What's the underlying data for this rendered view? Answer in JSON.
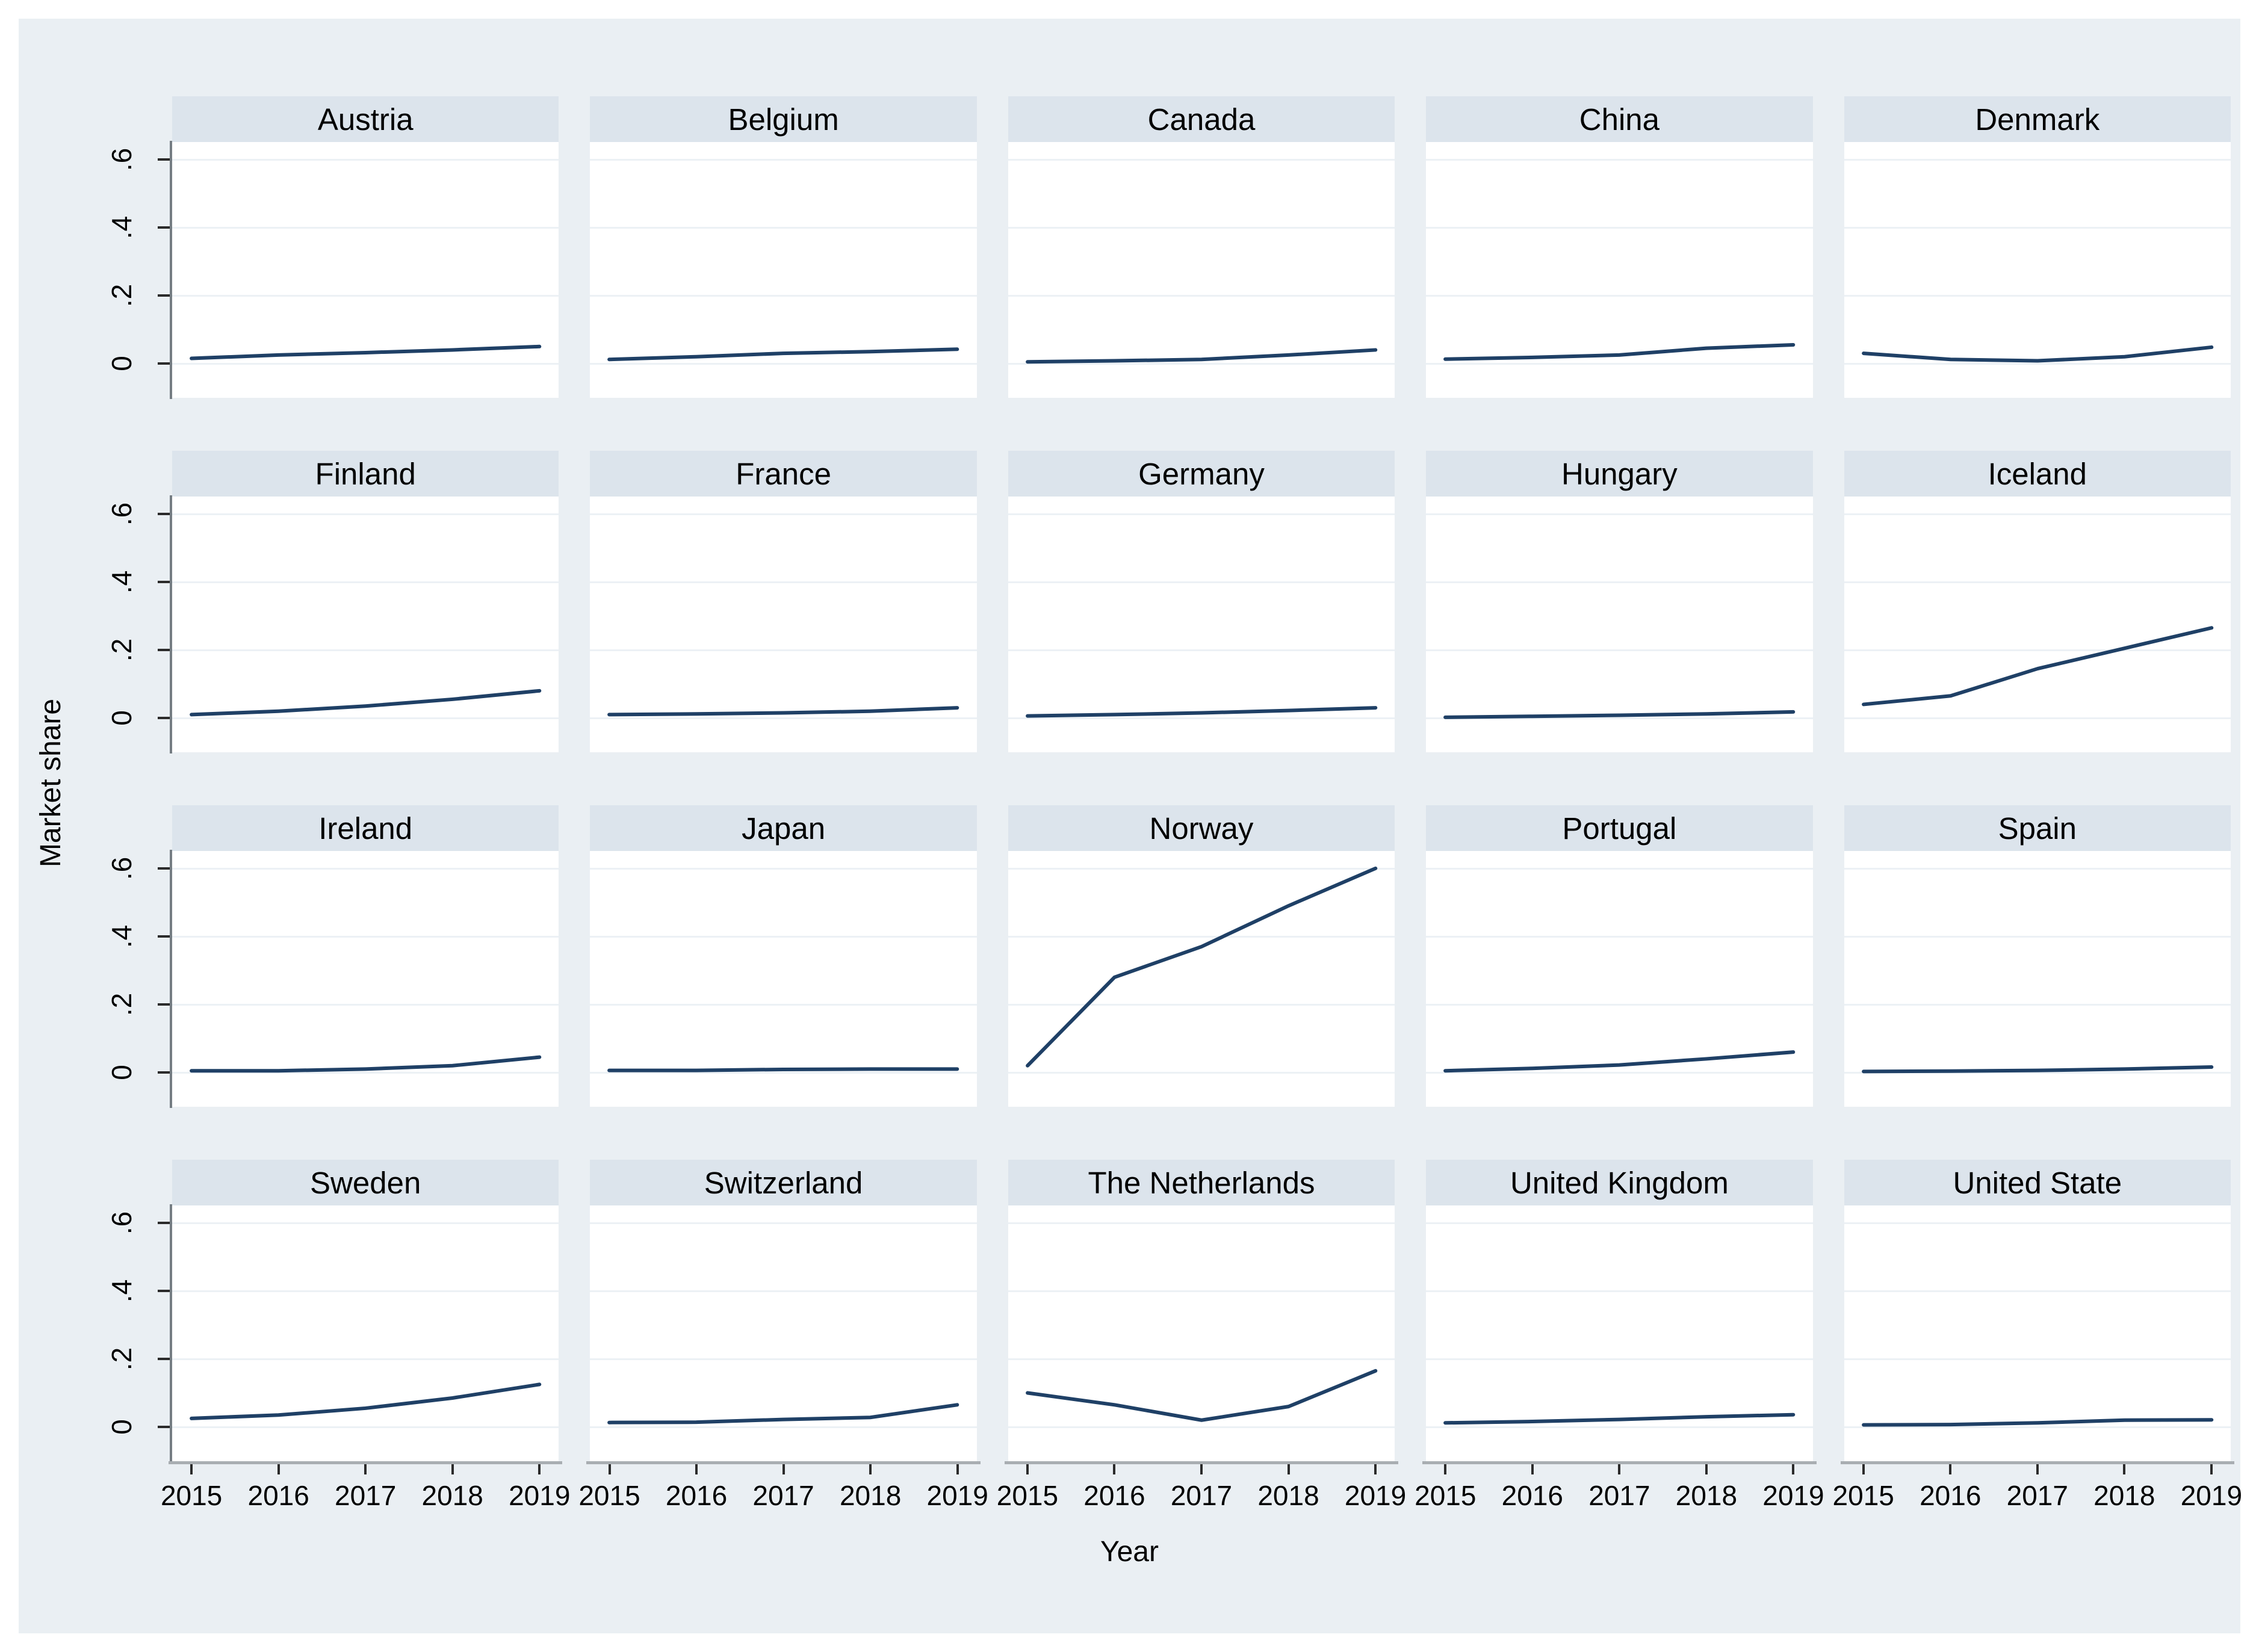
{
  "figure": {
    "y_axis_title": "Market share",
    "x_axis_title": "Year"
  },
  "colors": {
    "line": "#1f4066",
    "panel_header_bg": "#dce4ec",
    "canvas_bg": "#eaeff3",
    "plot_bg": "#ffffff",
    "gridline": "#ecf1f5",
    "axis_spine": "#757d83",
    "axis_bar": "#a9aeb2",
    "tick": "#2b2b2b"
  },
  "chart_data": {
    "type": "line",
    "layout": "small-multiples 4 rows x 5 cols",
    "title": "",
    "xlabel": "Year",
    "ylabel": "Market share",
    "x": [
      2015,
      2016,
      2017,
      2018,
      2019
    ],
    "x_tick_labels": [
      "2015",
      "2016",
      "2017",
      "2018",
      "2019"
    ],
    "ylim": [
      -0.045,
      0.65
    ],
    "yticks": [
      {
        "v": 0.0,
        "label": "0"
      },
      {
        "v": 0.2,
        "label": ".2"
      },
      {
        "v": 0.4,
        "label": ".4"
      },
      {
        "v": 0.6,
        "label": ".6"
      }
    ],
    "grid": "horizontal gridlines at y ticks",
    "legend": "none",
    "series": [
      {
        "name": "Austria",
        "values": [
          0.015,
          0.025,
          0.032,
          0.04,
          0.05
        ]
      },
      {
        "name": "Belgium",
        "values": [
          0.012,
          0.02,
          0.03,
          0.035,
          0.042
        ]
      },
      {
        "name": "Canada",
        "values": [
          0.005,
          0.008,
          0.012,
          0.025,
          0.04
        ]
      },
      {
        "name": "China",
        "values": [
          0.013,
          0.018,
          0.025,
          0.045,
          0.055
        ]
      },
      {
        "name": "Denmark",
        "values": [
          0.03,
          0.012,
          0.008,
          0.02,
          0.048
        ]
      },
      {
        "name": "Finland",
        "values": [
          0.01,
          0.02,
          0.035,
          0.055,
          0.08
        ]
      },
      {
        "name": "France",
        "values": [
          0.01,
          0.012,
          0.015,
          0.02,
          0.03
        ]
      },
      {
        "name": "Germany",
        "values": [
          0.006,
          0.01,
          0.015,
          0.022,
          0.03
        ]
      },
      {
        "name": "Hungary",
        "values": [
          0.002,
          0.005,
          0.008,
          0.012,
          0.018
        ]
      },
      {
        "name": "Iceland",
        "values": [
          0.04,
          0.065,
          0.145,
          0.205,
          0.265
        ]
      },
      {
        "name": "Ireland",
        "values": [
          0.005,
          0.005,
          0.01,
          0.02,
          0.045
        ]
      },
      {
        "name": "Japan",
        "values": [
          0.006,
          0.006,
          0.009,
          0.01,
          0.01
        ]
      },
      {
        "name": "Norway",
        "values": [
          0.02,
          0.28,
          0.37,
          0.49,
          0.6
        ]
      },
      {
        "name": "Portugal",
        "values": [
          0.005,
          0.012,
          0.022,
          0.04,
          0.06
        ]
      },
      {
        "name": "Spain",
        "values": [
          0.003,
          0.004,
          0.006,
          0.01,
          0.016
        ]
      },
      {
        "name": "Sweden",
        "values": [
          0.025,
          0.035,
          0.055,
          0.085,
          0.125
        ]
      },
      {
        "name": "Switzerland",
        "values": [
          0.013,
          0.014,
          0.022,
          0.028,
          0.065
        ]
      },
      {
        "name": "The Netherlands",
        "values": [
          0.1,
          0.065,
          0.02,
          0.06,
          0.165
        ]
      },
      {
        "name": "United Kingdom",
        "values": [
          0.012,
          0.016,
          0.022,
          0.03,
          0.036
        ]
      },
      {
        "name": "United State",
        "values": [
          0.006,
          0.007,
          0.012,
          0.02,
          0.021
        ]
      }
    ]
  }
}
